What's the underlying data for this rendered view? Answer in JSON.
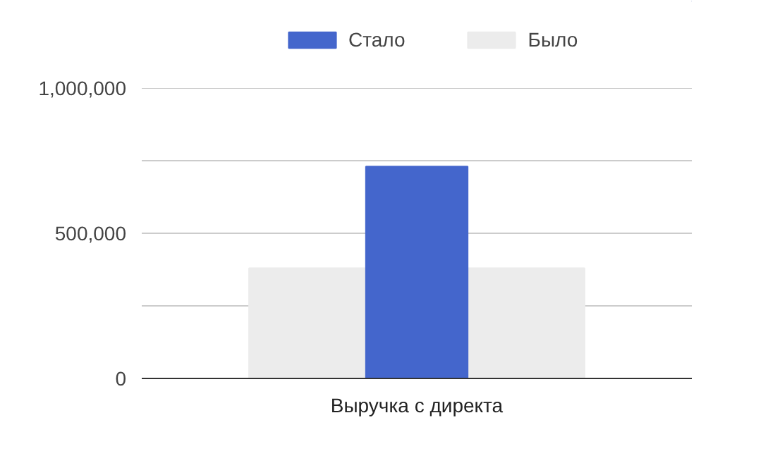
{
  "chart_data": {
    "type": "bar",
    "categories": [
      "Выручка с директа"
    ],
    "series": [
      {
        "name": "Стало",
        "color": "#4466cc",
        "values": [
          730000
        ]
      },
      {
        "name": "Было",
        "color": "#ececec",
        "values": [
          380000
        ]
      }
    ],
    "ylim": [
      0,
      1000000
    ],
    "yticks": [
      0,
      {
        "value": 250000,
        "label": null
      },
      {
        "value": 500000,
        "label": "500,000"
      },
      {
        "value": 750000,
        "label": null
      },
      {
        "value": 1000000,
        "label": "1,000,000"
      }
    ],
    "grid": "y",
    "legend": "top left"
  }
}
